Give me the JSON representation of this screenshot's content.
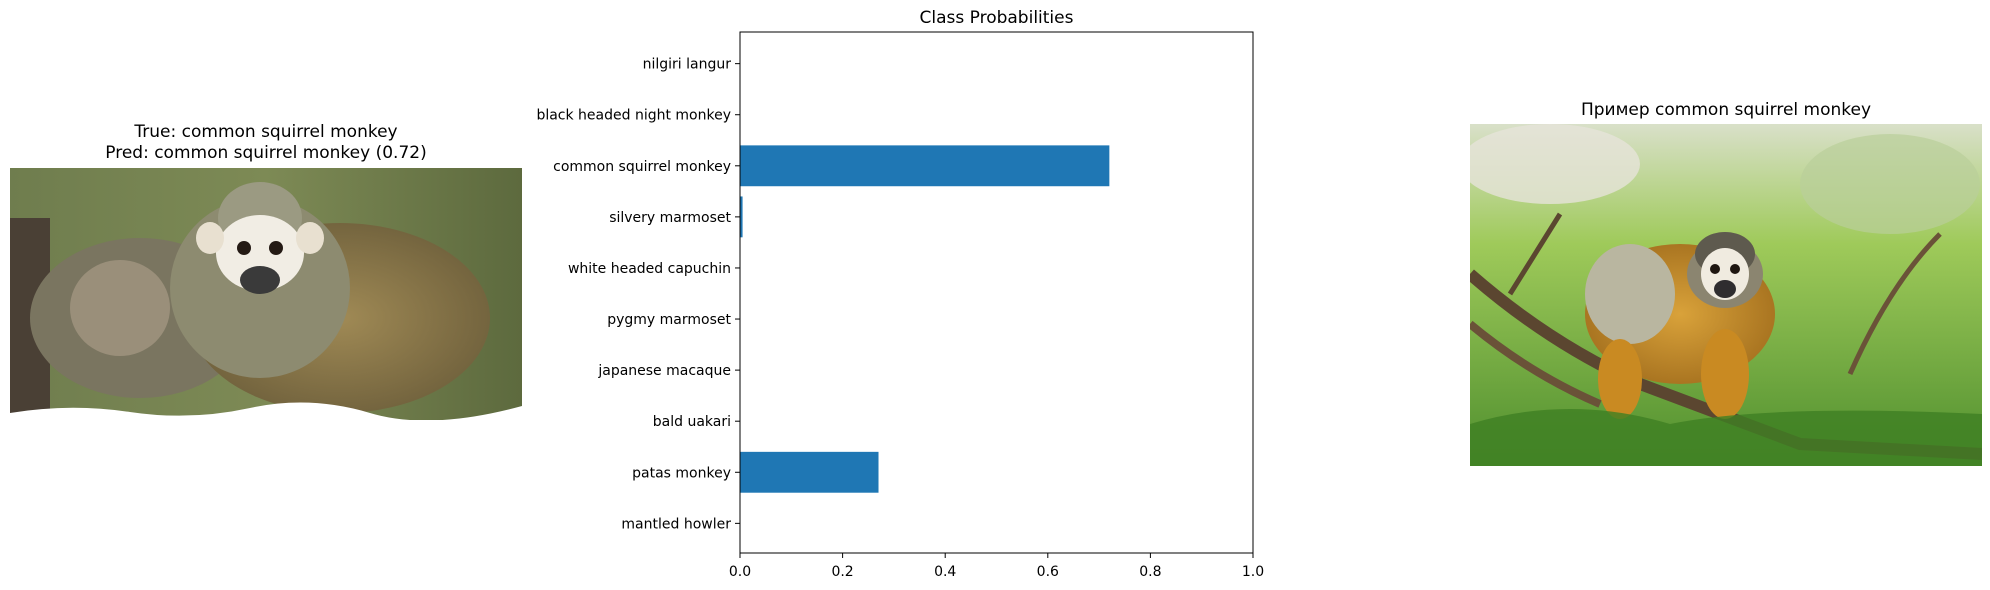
{
  "left_panel": {
    "title_line1": "True: common squirrel monkey",
    "title_line2": "Pred: common squirrel monkey (0.72)",
    "image_subject": "two common squirrel monkeys"
  },
  "right_panel": {
    "title": "Пример common squirrel monkey",
    "image_subject": "common squirrel monkey on a branch"
  },
  "chart_data": {
    "type": "bar",
    "orientation": "horizontal",
    "title": "Class Probabilities",
    "categories": [
      "nilgiri langur",
      "black headed night monkey",
      "common squirrel monkey",
      "silvery marmoset",
      "white headed capuchin",
      "pygmy marmoset",
      "japanese macaque",
      "bald uakari",
      "patas monkey",
      "mantled howler"
    ],
    "values": [
      0.0,
      0.0,
      0.72,
      0.005,
      0.0,
      0.0,
      0.0,
      0.0,
      0.27,
      0.0
    ],
    "xlim": [
      0,
      1.0
    ],
    "xticks": [
      "0.0",
      "0.2",
      "0.4",
      "0.6",
      "0.8",
      "1.0"
    ],
    "bar_color": "#1f77b4",
    "grid": false
  }
}
